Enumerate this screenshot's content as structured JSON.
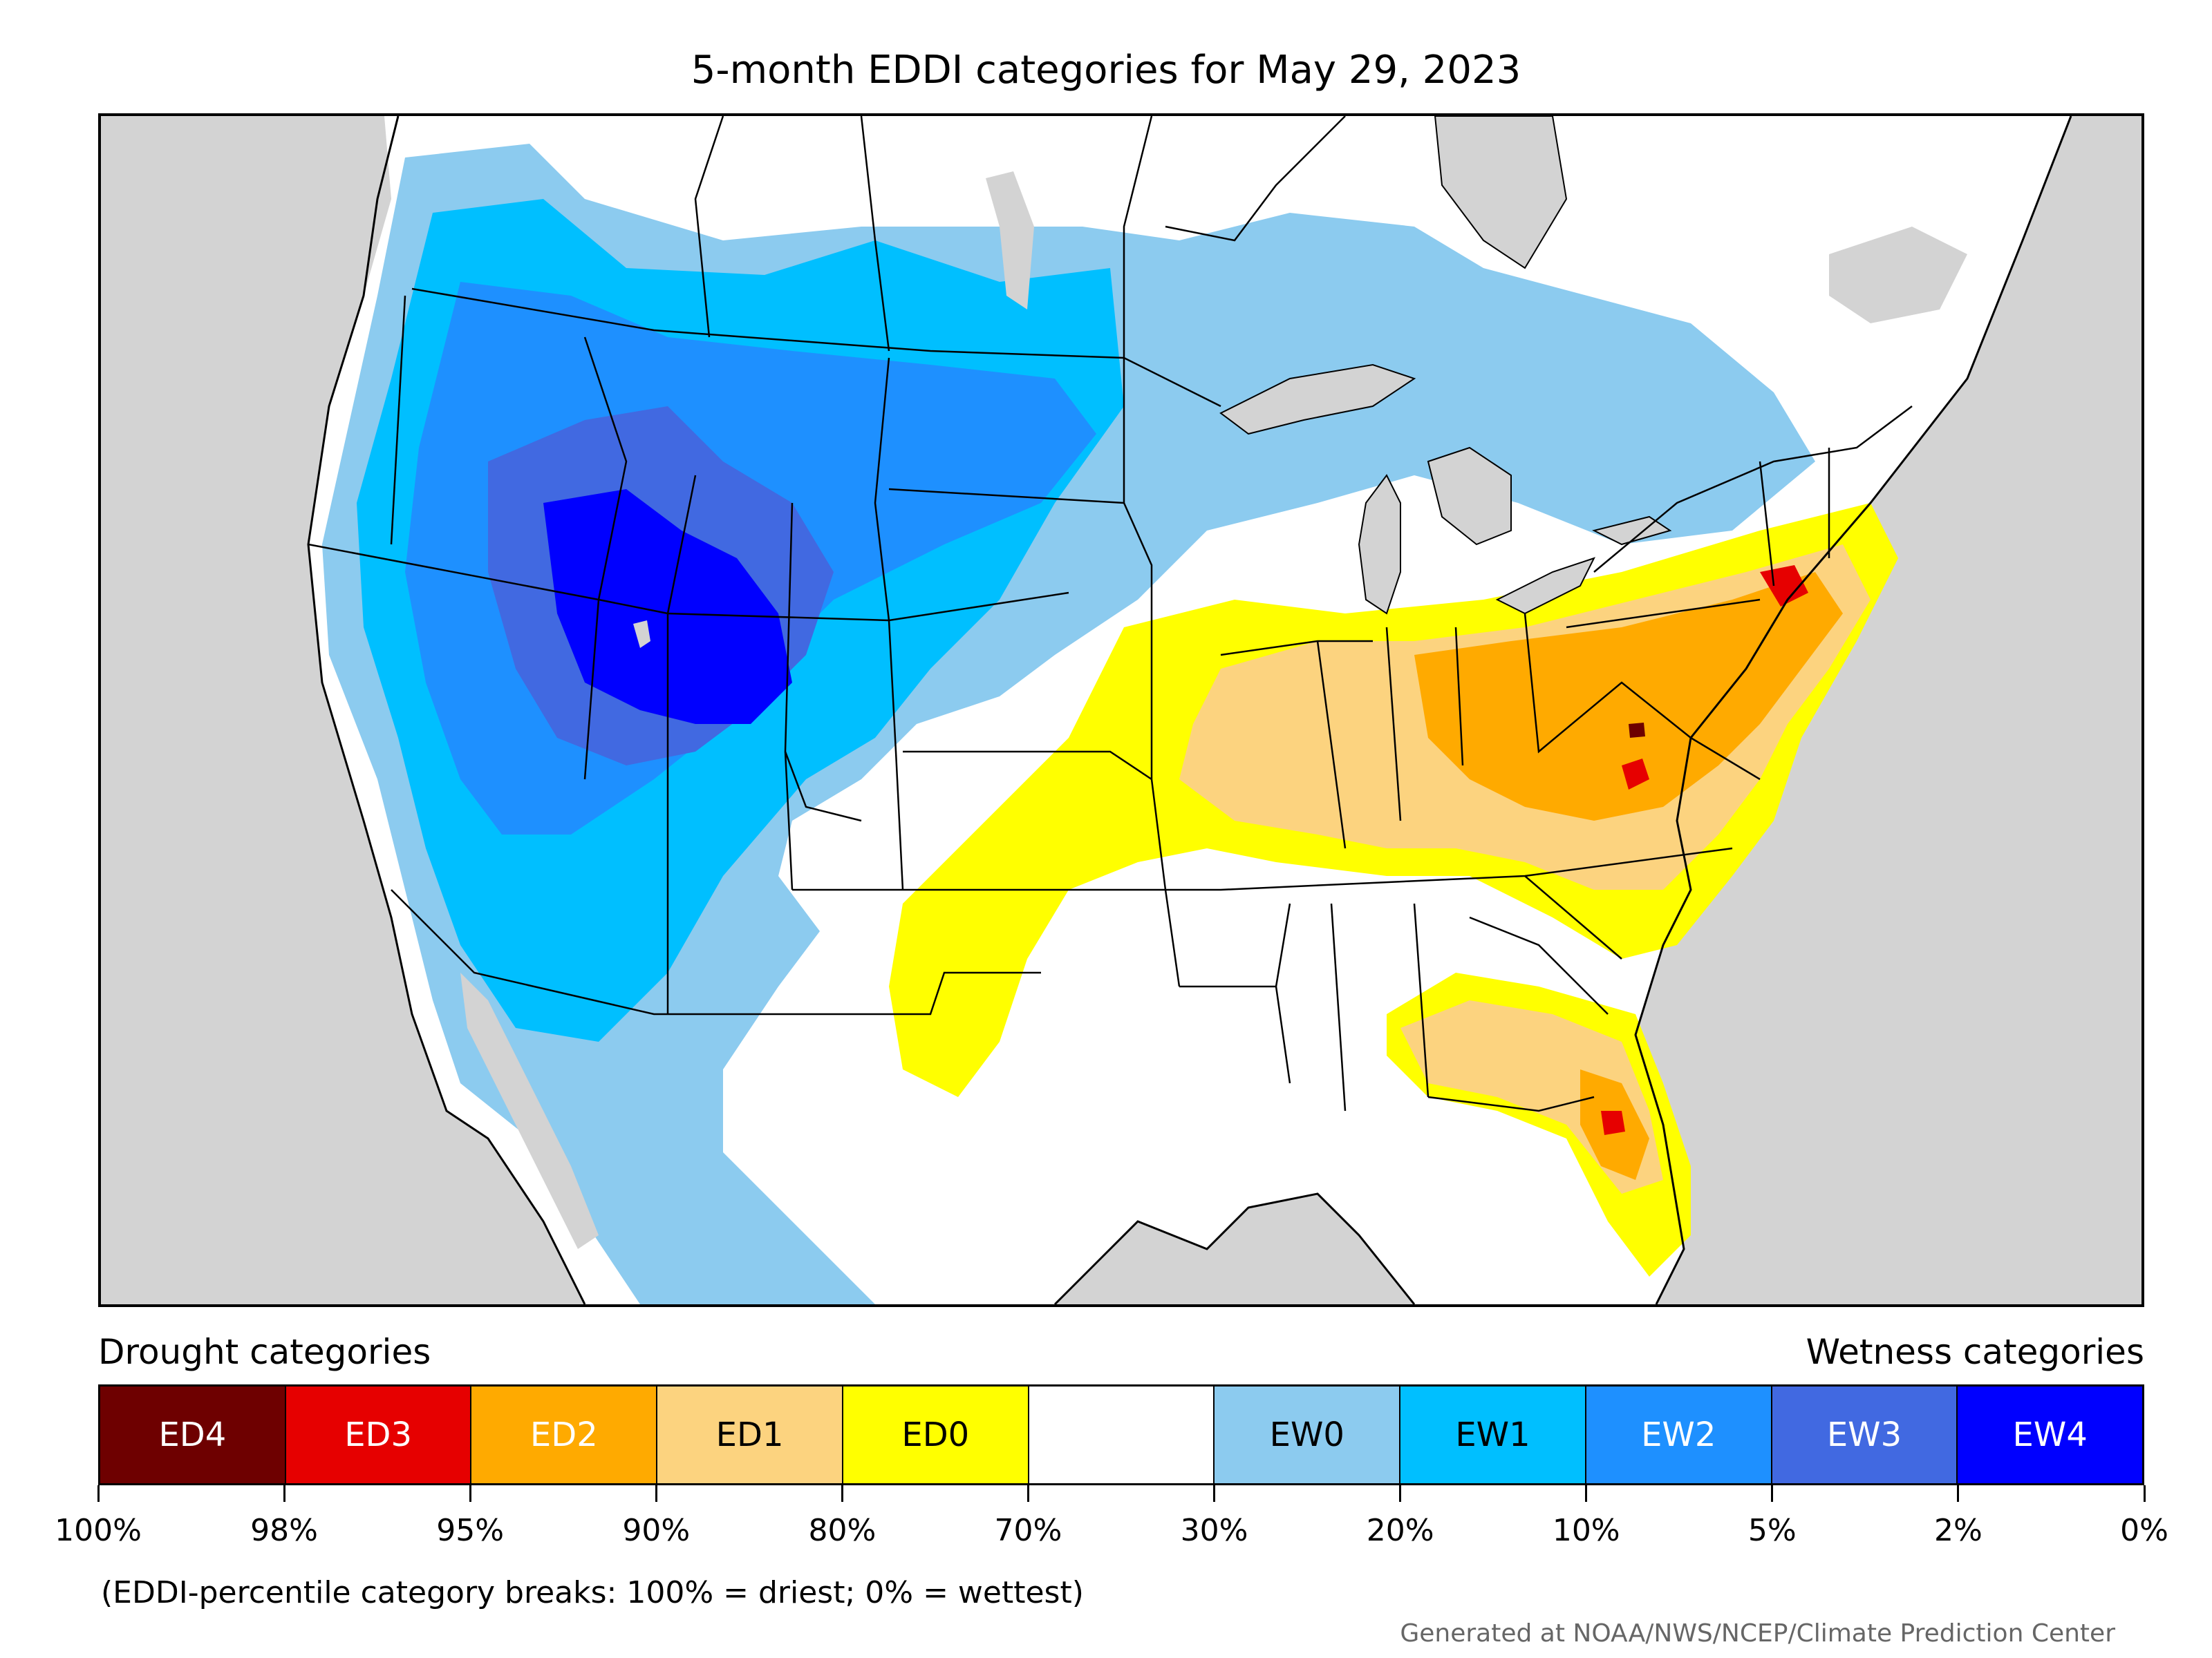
{
  "title": "5-month EDDI categories for May 29, 2023",
  "legend": {
    "drought_heading": "Drought categories",
    "wetness_heading": "Wetness categories",
    "categories": [
      {
        "label": "ED4",
        "color": "#6e0000",
        "text_color": "#ffffff"
      },
      {
        "label": "ED3",
        "color": "#e60000",
        "text_color": "#ffffff"
      },
      {
        "label": "ED2",
        "color": "#ffaa00",
        "text_color": "#ffffff"
      },
      {
        "label": "ED1",
        "color": "#fcd37f",
        "text_color": "#000000"
      },
      {
        "label": "ED0",
        "color": "#ffff00",
        "text_color": "#000000"
      },
      {
        "label": "",
        "color": "#ffffff",
        "text_color": "#000000"
      },
      {
        "label": "EW0",
        "color": "#8ccbef",
        "text_color": "#000000"
      },
      {
        "label": "EW1",
        "color": "#00bfff",
        "text_color": "#000000"
      },
      {
        "label": "EW2",
        "color": "#1e90ff",
        "text_color": "#ffffff"
      },
      {
        "label": "EW3",
        "color": "#4169e1",
        "text_color": "#ffffff"
      },
      {
        "label": "EW4",
        "color": "#0000ff",
        "text_color": "#ffffff"
      }
    ],
    "breaks": [
      "100%",
      "98%",
      "95%",
      "90%",
      "80%",
      "70%",
      "30%",
      "20%",
      "10%",
      "5%",
      "2%",
      "0%"
    ]
  },
  "footnote": "(EDDI-percentile category breaks: 100% = driest; 0% = wettest)",
  "credit": "Generated at NOAA/NWS/NCEP/Climate Prediction Center",
  "colors": {
    "ocean": "#d3d3d3",
    "ed4": "#6e0000",
    "ed3": "#e60000",
    "ed2": "#ffaa00",
    "ed1": "#fcd37f",
    "ed0": "#ffff00",
    "ew0": "#8ccbef",
    "ew1": "#00bfff",
    "ew2": "#1e90ff",
    "ew3": "#4169e1",
    "ew4": "#0000ff"
  }
}
